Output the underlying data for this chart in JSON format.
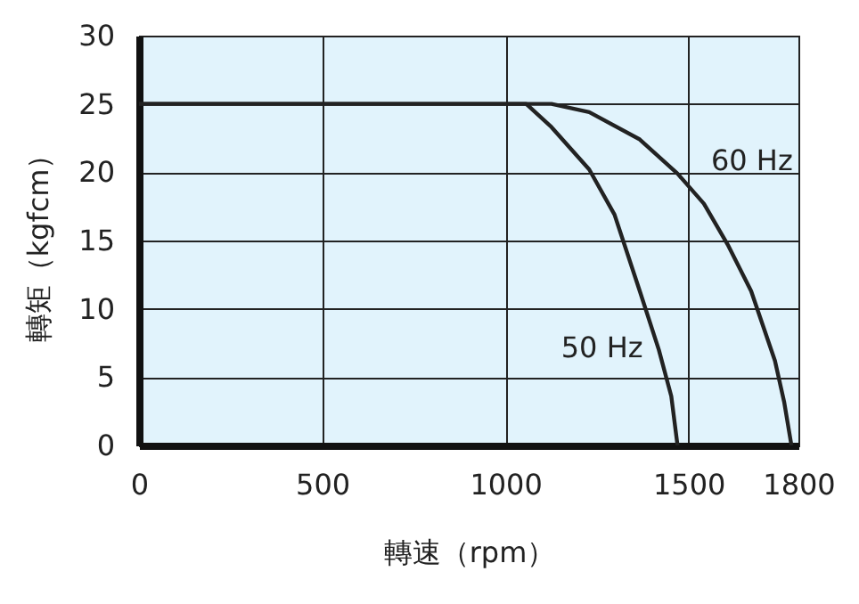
{
  "chart_data": {
    "type": "line",
    "xlabel": "轉速（rpm）",
    "ylabel": "轉矩（kgfcm）",
    "xlim": [
      0,
      1800
    ],
    "xticks": [
      0,
      500,
      1000,
      1500,
      1800
    ],
    "ylim": [
      0,
      30
    ],
    "yticks": [
      0,
      5,
      10,
      15,
      20,
      25,
      30
    ],
    "grid": true,
    "legend": false,
    "marker": "none",
    "line_style": "solid",
    "series": [
      {
        "color": "#222222",
        "x": [
          0,
          1000,
          1057,
          1126,
          1229,
          1298,
          1367,
          1419,
          1453,
          1470
        ],
        "values": [
          25,
          25,
          25,
          23.3,
          20.2,
          16.9,
          11.3,
          7,
          3.6,
          0
        ]
      },
      {
        "color": "#222222",
        "x": [
          0,
          1000,
          1126,
          1229,
          1367,
          1470,
          1542,
          1607,
          1671,
          1736,
          1761,
          1781
        ],
        "values": [
          25,
          25,
          25,
          24.4,
          22.4,
          19.9,
          17.7,
          14.7,
          11.3,
          6.2,
          3.2,
          0
        ]
      }
    ],
    "annotations": [
      {
        "text": "50 Hz",
        "x": 1395,
        "y": 10
      },
      {
        "text": "60 Hz",
        "x": 1542,
        "y": 17.7
      }
    ]
  }
}
